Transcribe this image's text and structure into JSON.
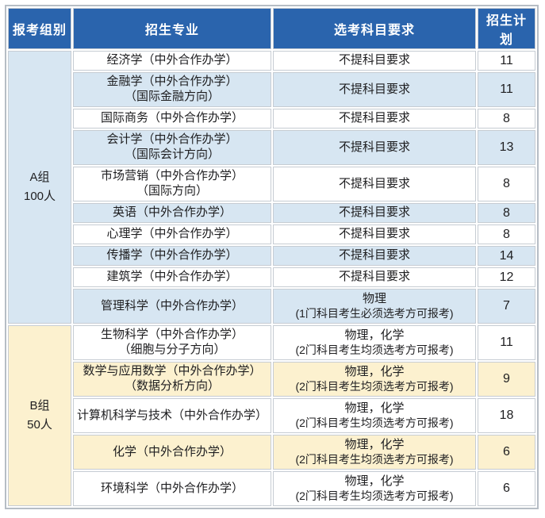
{
  "table": {
    "columns": [
      "报考组别",
      "招生专业",
      "选考科目要求",
      "招生计划"
    ],
    "groups": [
      {
        "name": "A组",
        "size": "100人"
      },
      {
        "name": "B组",
        "size": "50人"
      }
    ],
    "rows": [
      {
        "major": "经济学（中外合作办学）",
        "subjects": "不提科目要求",
        "plan": "11"
      },
      {
        "major": "金融学（中外合作办学）",
        "major_sub": "（国际金融方向）",
        "subjects": "不提科目要求",
        "plan": "11"
      },
      {
        "major": "国际商务（中外合作办学）",
        "subjects": "不提科目要求",
        "plan": "8"
      },
      {
        "major": "会计学（中外合作办学）",
        "major_sub": "（国际会计方向）",
        "subjects": "不提科目要求",
        "plan": "13"
      },
      {
        "major": "市场营销（中外合作办学）",
        "major_sub": "（国际方向）",
        "subjects": "不提科目要求",
        "plan": "8"
      },
      {
        "major": "英语（中外合作办学）",
        "subjects": "不提科目要求",
        "plan": "8"
      },
      {
        "major": "心理学（中外合作办学）",
        "subjects": "不提科目要求",
        "plan": "8"
      },
      {
        "major": "传播学（中外合作办学）",
        "subjects": "不提科目要求",
        "plan": "14"
      },
      {
        "major": "建筑学（中外合作办学）",
        "subjects": "不提科目要求",
        "plan": "12"
      },
      {
        "major": "管理科学（中外合作办学）",
        "subjects": "物理",
        "subjects_note": "(1门科目考生必须选考方可报考)",
        "plan": "7"
      },
      {
        "major": "生物科学（中外合作办学）",
        "major_sub": "（细胞与分子方向）",
        "subjects": "物理，化学",
        "subjects_note": "(2门科目考生均须选考方可报考)",
        "plan": "11"
      },
      {
        "major": "数学与应用数学（中外合作办学）",
        "major_sub": "（数据分析方向）",
        "subjects": "物理，化学",
        "subjects_note": "(2门科目考生均须选考方可报考)",
        "plan": "9"
      },
      {
        "major": "计算机科学与技术（中外合作办学）",
        "subjects": "物理，化学",
        "subjects_note": "(2门科目考生均须选考方可报考)",
        "plan": "18"
      },
      {
        "major": "化学（中外合作办学）",
        "subjects": "物理，化学",
        "subjects_note": "(2门科目考生均须选考方可报考)",
        "plan": "6"
      },
      {
        "major": "环境科学（中外合作办学）",
        "subjects": "物理，化学",
        "subjects_note": "(2门科目考生均须选考方可报考)",
        "plan": "6"
      }
    ],
    "colors": {
      "header_bg": "#2a64ad",
      "row_blue": "#d7e6f2",
      "row_cream": "#fcf1cf",
      "row_white": "#ffffff",
      "border": "#c6ccd3"
    }
  }
}
